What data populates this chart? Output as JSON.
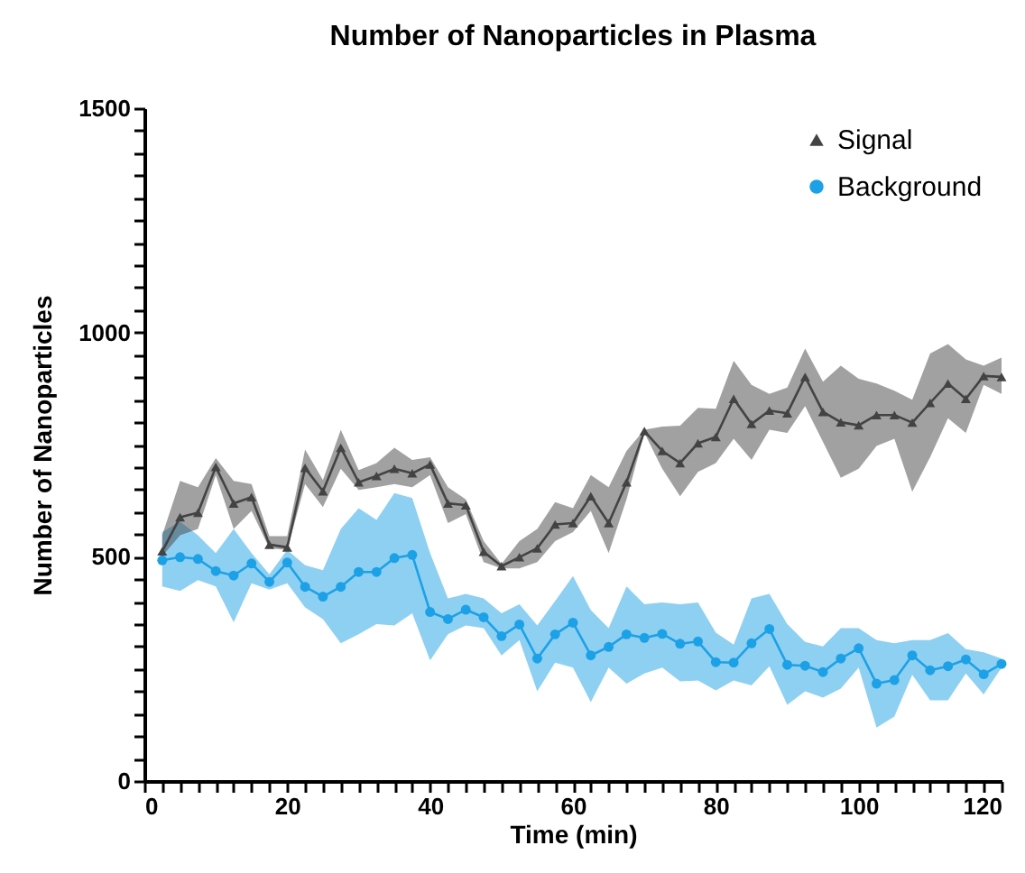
{
  "chart_data": {
    "type": "line",
    "title": "Number of Nanoparticles in Plasma",
    "xlabel": "Time (min)",
    "ylabel": "Number of Nanoparticles",
    "x": [
      2.5,
      5,
      7.5,
      10,
      12.5,
      15,
      17.5,
      20,
      22.5,
      25,
      27.5,
      30,
      32.5,
      35,
      37.5,
      40,
      42.5,
      45,
      47.5,
      50,
      52.5,
      55,
      57.5,
      60,
      62.5,
      65,
      67.5,
      70,
      72.5,
      75,
      77.5,
      80,
      82.5,
      85,
      87.5,
      90,
      92.5,
      95,
      97.5,
      100,
      102.5,
      105,
      107.5,
      110,
      112.5,
      115,
      117.5,
      120
    ],
    "series": [
      {
        "name": "Signal",
        "color": "#434343",
        "marker": "triangle",
        "values": [
          512,
          588,
          598,
          700,
          619,
          633,
          527,
          521,
          698,
          646,
          743,
          666,
          680,
          696,
          686,
          706,
          619,
          615,
          511,
          479,
          499,
          519,
          572,
          575,
          635,
          575,
          666,
          780,
          736,
          709,
          753,
          767,
          852,
          796,
          826,
          820,
          901,
          823,
          800,
          793,
          816,
          816,
          799,
          843,
          886,
          852,
          903,
          901
        ],
        "lower": [
          501,
          548,
          562,
          682,
          562,
          602,
          519,
          515,
          662,
          611,
          696,
          649,
          655,
          662,
          655,
          682,
          575,
          595,
          488,
          474,
          474,
          488,
          535,
          555,
          602,
          508,
          628,
          776,
          696,
          635,
          689,
          709,
          763,
          716,
          783,
          776,
          836,
          756,
          676,
          696,
          747,
          763,
          645,
          722,
          809,
          776,
          883,
          863
        ],
        "upper": [
          548,
          669,
          655,
          720,
          669,
          662,
          546,
          546,
          739,
          671,
          783,
          693,
          709,
          743,
          716,
          722,
          655,
          628,
          535,
          484,
          535,
          562,
          622,
          608,
          682,
          655,
          736,
          783,
          790,
          792,
          832,
          830,
          937,
          883,
          863,
          877,
          964,
          890,
          926,
          897,
          886,
          870,
          850,
          953,
          974,
          940,
          926,
          944
        ]
      },
      {
        "name": "Background",
        "color": "#1da1e6",
        "marker": "circle",
        "values": [
          492,
          499,
          495,
          468,
          458,
          485,
          444,
          487,
          433,
          411,
          433,
          466,
          466,
          497,
          504,
          377,
          361,
          382,
          365,
          323,
          349,
          273,
          327,
          353,
          280,
          299,
          327,
          319,
          328,
          306,
          311,
          265,
          264,
          307,
          339,
          259,
          257,
          243,
          273,
          296,
          217,
          225,
          280,
          247,
          256,
          271,
          238,
          261
        ],
        "lower": [
          434,
          424,
          448,
          434,
          354,
          441,
          427,
          441,
          387,
          361,
          307,
          327,
          350,
          347,
          374,
          269,
          327,
          347,
          341,
          280,
          314,
          200,
          264,
          253,
          176,
          253,
          217,
          240,
          253,
          222,
          224,
          202,
          224,
          213,
          256,
          170,
          200,
          186,
          206,
          253,
          119,
          144,
          237,
          180,
          180,
          240,
          193,
          253
        ],
        "upper": [
          555,
          578,
          548,
          508,
          562,
          508,
          461,
          515,
          481,
          470,
          562,
          608,
          582,
          642,
          631,
          508,
          407,
          417,
          407,
          374,
          394,
          347,
          401,
          457,
          381,
          341,
          434,
          394,
          398,
          394,
          398,
          331,
          304,
          407,
          417,
          350,
          310,
          300,
          341,
          341,
          314,
          307,
          314,
          314,
          330,
          294,
          287,
          273
        ]
      }
    ],
    "xlim": [
      0,
      120
    ],
    "xticks": [
      0,
      {
        "value": 2.5,
        "label": null
      },
      {
        "value": 5,
        "label": null
      },
      {
        "value": 7.5,
        "label": null
      },
      {
        "value": 10,
        "label": null
      },
      {
        "value": 12.5,
        "label": null
      },
      {
        "value": 15,
        "label": null
      },
      {
        "value": 17.5,
        "label": null
      },
      20,
      {
        "value": 22.5,
        "label": null
      },
      {
        "value": 25,
        "label": null
      },
      {
        "value": 27.5,
        "label": null
      },
      {
        "value": 30,
        "label": null
      },
      {
        "value": 32.5,
        "label": null
      },
      {
        "value": 35,
        "label": null
      },
      {
        "value": 37.5,
        "label": null
      },
      40,
      {
        "value": 42.5,
        "label": null
      },
      {
        "value": 45,
        "label": null
      },
      {
        "value": 47.5,
        "label": null
      },
      {
        "value": 50,
        "label": null
      },
      {
        "value": 52.5,
        "label": null
      },
      {
        "value": 55,
        "label": null
      },
      {
        "value": 57.5,
        "label": null
      },
      60,
      {
        "value": 62.5,
        "label": null
      },
      {
        "value": 65,
        "label": null
      },
      {
        "value": 67.5,
        "label": null
      },
      {
        "value": 70,
        "label": null
      },
      {
        "value": 72.5,
        "label": null
      },
      {
        "value": 75,
        "label": null
      },
      {
        "value": 77.5,
        "label": null
      },
      80,
      {
        "value": 82.5,
        "label": null
      },
      {
        "value": 85,
        "label": null
      },
      {
        "value": 87.5,
        "label": null
      },
      {
        "value": 90,
        "label": null
      },
      {
        "value": 92.5,
        "label": null
      },
      {
        "value": 95,
        "label": null
      },
      {
        "value": 97.5,
        "label": null
      },
      100,
      {
        "value": 102.5,
        "label": null
      },
      {
        "value": 105,
        "label": null
      },
      {
        "value": 107.5,
        "label": null
      },
      {
        "value": 110,
        "label": null
      },
      {
        "value": 112.5,
        "label": null
      },
      {
        "value": 115,
        "label": null
      },
      {
        "value": 117.5,
        "label": null
      },
      120
    ],
    "ylim": [
      0,
      1500
    ],
    "yticks": [
      0,
      {
        "value": 50,
        "label": null
      },
      {
        "value": 100,
        "label": null
      },
      {
        "value": 150,
        "label": null
      },
      {
        "value": 200,
        "label": null
      },
      {
        "value": 250,
        "label": null
      },
      {
        "value": 300,
        "label": null
      },
      {
        "value": 350,
        "label": null
      },
      {
        "value": 400,
        "label": null
      },
      {
        "value": 450,
        "label": null
      },
      500,
      {
        "value": 550,
        "label": null
      },
      {
        "value": 600,
        "label": null
      },
      {
        "value": 650,
        "label": null
      },
      {
        "value": 700,
        "label": null
      },
      {
        "value": 750,
        "label": null
      },
      {
        "value": 800,
        "label": null
      },
      {
        "value": 850,
        "label": null
      },
      {
        "value": 900,
        "label": null
      },
      {
        "value": 950,
        "label": null
      },
      1000,
      {
        "value": 1050,
        "label": null
      },
      {
        "value": 1100,
        "label": null
      },
      {
        "value": 1150,
        "label": null
      },
      {
        "value": 1200,
        "label": null
      },
      {
        "value": 1250,
        "label": null
      },
      {
        "value": 1300,
        "label": null
      },
      {
        "value": 1350,
        "label": null
      },
      {
        "value": 1400,
        "label": null
      },
      {
        "value": 1450,
        "label": null
      },
      1500
    ],
    "grid": false,
    "legend": "top right"
  }
}
